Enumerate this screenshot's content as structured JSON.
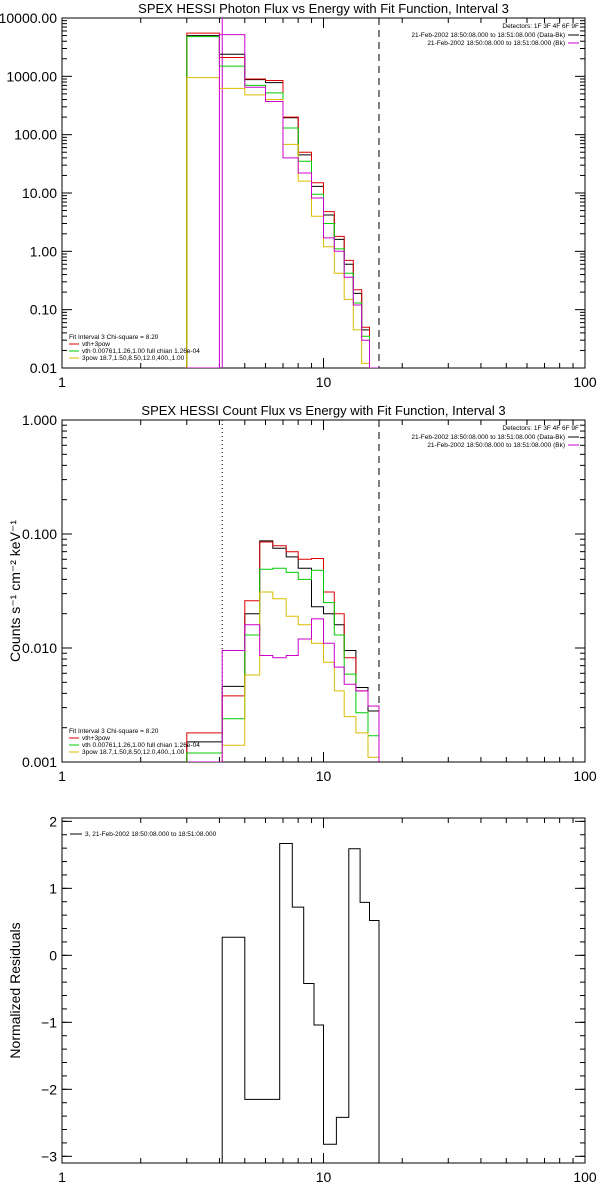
{
  "chart_data": [
    {
      "type": "line",
      "title": "SPEX HESSI Photon Flux vs Energy with Fit Function, Interval 3",
      "ylabel": "",
      "xlabel": "",
      "xscale": "log",
      "yscale": "log",
      "xlim": [
        1,
        100
      ],
      "ylim": [
        0.01,
        10000
      ],
      "xticks": [
        {
          "v": 1,
          "label": "1"
        },
        {
          "v": 10,
          "label": "10"
        },
        {
          "v": 100,
          "label": "100"
        }
      ],
      "yticks": [
        {
          "v": 0.01,
          "label": "0.01"
        },
        {
          "v": 0.1,
          "label": "0.10"
        },
        {
          "v": 1,
          "label": "1.00"
        },
        {
          "v": 10,
          "label": "10.00"
        },
        {
          "v": 100,
          "label": "100.00"
        },
        {
          "v": 1000,
          "label": "1000.00"
        },
        {
          "v": 10000,
          "label": "10000.00"
        }
      ],
      "top_legend": {
        "header": "Detectors: 1F 3F 4F 6F 9F",
        "entries": [
          {
            "label": "21-Feb-2002 18:50:08.000 to 18:51:08.000 (Data-Bk)",
            "color": "#000000"
          },
          {
            "label": "21-Feb-2002 18:50:08.000 to 18:51:08.000 (Bk)",
            "color": "#cc00cc"
          }
        ]
      },
      "bottom_legend": {
        "header": "Fit Interval 3   Chi-square = 8.20",
        "entries": [
          {
            "label": "vth+3pow",
            "color": "#dd0000"
          },
          {
            "label": "vth 0.00761,1.26,1.00  full chian 1.26e-04",
            "color": "#00cc00"
          },
          {
            "label": "3pow 18.7,1.50,8.50,12.0,400.,1.00",
            "color": "#ddbb00"
          }
        ]
      },
      "vlines": [
        {
          "x": 4.1,
          "style": "solid",
          "color": "#cc00cc"
        },
        {
          "x": 16.3,
          "style": "dashed",
          "color": "#000000"
        }
      ],
      "edges": [
        3.0,
        4.0,
        5.0,
        6.0,
        7.0,
        8.0,
        9.0,
        10.0,
        11.0,
        12.0,
        13.0,
        14.0,
        15.0,
        16.3
      ],
      "series": [
        {
          "name": "Data-Bk",
          "color": "#000000",
          "values": [
            5000,
            2400,
            880,
            780,
            195,
            45,
            13,
            4.2,
            1.6,
            0.6,
            0.19,
            0.045,
            0.003
          ]
        },
        {
          "name": "vth+3pow",
          "color": "#dd0000",
          "values": [
            5500,
            2100,
            900,
            850,
            200,
            50,
            15,
            4.8,
            1.8,
            0.7,
            0.22,
            0.05,
            0.004
          ]
        },
        {
          "name": "vth",
          "color": "#00cc00",
          "values": [
            4800,
            1500,
            700,
            520,
            130,
            35,
            9.5,
            3.0,
            1.1,
            0.42,
            0.13,
            0.035,
            0.002
          ]
        },
        {
          "name": "3pow",
          "color": "#ddbb00",
          "values": [
            950,
            620,
            480,
            400,
            68,
            16,
            4.0,
            1.2,
            0.42,
            0.15,
            0.045,
            0.012,
            0.001
          ]
        },
        {
          "name": "Bk",
          "color": "#cc00cc",
          "values": [
            0.001,
            5200,
            650,
            370,
            40,
            22,
            8.2,
            1.7,
            1.0,
            0.36,
            0.12,
            0.03,
            0.002
          ]
        }
      ]
    },
    {
      "type": "line",
      "title": "SPEX HESSI Count Flux vs Energy with Fit Function, Interval 3",
      "ylabel": "Counts s⁻¹ cm⁻² keV⁻¹",
      "xlabel": "",
      "xscale": "log",
      "yscale": "log",
      "xlim": [
        1,
        100
      ],
      "ylim": [
        0.001,
        1
      ],
      "xticks": [
        {
          "v": 1,
          "label": "1"
        },
        {
          "v": 10,
          "label": "10"
        },
        {
          "v": 100,
          "label": "100"
        }
      ],
      "yticks": [
        {
          "v": 0.001,
          "label": "0.001"
        },
        {
          "v": 0.01,
          "label": "0.010"
        },
        {
          "v": 0.1,
          "label": "0.100"
        },
        {
          "v": 1,
          "label": "1.000"
        }
      ],
      "top_legend": {
        "header": "Detectors: 1F 3F 4F 6F 9F",
        "entries": [
          {
            "label": "21-Feb-2002 18:50:08.000 to 18:51:08.000 (Data-Bk)",
            "color": "#000000"
          },
          {
            "label": "21-Feb-2002 18:50:08.000 to 18:51:08.000 (Bk)",
            "color": "#cc00cc"
          }
        ]
      },
      "bottom_legend": {
        "header": "Fit Interval 3   Chi-square = 8.20",
        "entries": [
          {
            "label": "vth+3pow",
            "color": "#dd0000"
          },
          {
            "label": "vth 0.00761,1.26,1.00  full chian 1.26e-04",
            "color": "#00cc00"
          },
          {
            "label": "3pow 18.7,1.50,8.50,12.0,400.,1.00",
            "color": "#ddbb00"
          }
        ]
      },
      "vlines": [
        {
          "x": 4.1,
          "style": "dotted",
          "color": "#000000"
        },
        {
          "x": 16.3,
          "style": "dashed",
          "color": "#000000"
        }
      ],
      "edges": [
        3.0,
        4.1,
        5.0,
        5.7,
        6.4,
        7.2,
        8.0,
        9.0,
        10.0,
        11.0,
        12.0,
        13.3,
        14.8,
        16.3
      ],
      "series": [
        {
          "name": "Data-Bk",
          "color": "#000000",
          "values": [
            0.0015,
            0.0046,
            0.02,
            0.087,
            0.075,
            0.063,
            0.05,
            0.023,
            0.02,
            0.016,
            0.0095,
            0.0045,
            0.0028
          ]
        },
        {
          "name": "vth+3pow",
          "color": "#dd0000",
          "values": [
            0.0018,
            0.0038,
            0.026,
            0.085,
            0.079,
            0.07,
            0.06,
            0.061,
            0.031,
            0.02,
            0.0082,
            0.0042,
            0.0031
          ]
        },
        {
          "name": "vth",
          "color": "#00cc00",
          "values": [
            0.0012,
            0.0024,
            0.013,
            0.049,
            0.05,
            0.046,
            0.04,
            0.048,
            0.025,
            0.013,
            0.0059,
            0.0027,
            0.0017
          ]
        },
        {
          "name": "3pow",
          "color": "#ddbb00",
          "values": [
            0.001,
            0.0014,
            0.0058,
            0.031,
            0.027,
            0.019,
            0.016,
            0.011,
            0.0075,
            0.0042,
            0.0025,
            0.0018,
            0.0011
          ]
        },
        {
          "name": "Bk",
          "color": "#cc00cc",
          "values": [
            0.001,
            0.0095,
            0.016,
            0.0086,
            0.0082,
            0.0086,
            0.012,
            0.018,
            0.011,
            0.0068,
            0.0048,
            0.0042,
            0.0031
          ]
        }
      ]
    },
    {
      "type": "line",
      "title": "",
      "ylabel": "Normalized Residuals",
      "xlabel": "",
      "xscale": "log",
      "yscale": "linear",
      "xlim": [
        1,
        100
      ],
      "ylim": [
        -3.1,
        2.05
      ],
      "xticks": [
        {
          "v": 1,
          "label": "1"
        },
        {
          "v": 10,
          "label": "10"
        },
        {
          "v": 100,
          "label": "100"
        }
      ],
      "yticks": [
        {
          "v": -3,
          "label": "−3"
        },
        {
          "v": -2,
          "label": "−2"
        },
        {
          "v": -1,
          "label": "−1"
        },
        {
          "v": 0,
          "label": "0"
        },
        {
          "v": 1,
          "label": "1"
        },
        {
          "v": 2,
          "label": "2"
        }
      ],
      "top_legend": {
        "header": "",
        "entries": [
          {
            "label": "3, 21-Feb-2002 18:50:08.000 to 18:51:08.000",
            "color": "#000000"
          }
        ]
      },
      "bottom_legend": {
        "header": "",
        "entries": []
      },
      "vlines": [],
      "edges": [
        4.1,
        5.0,
        5.9,
        6.8,
        7.6,
        8.4,
        9.2,
        10.0,
        11.2,
        12.5,
        13.8,
        15.0,
        16.3
      ],
      "series": [
        {
          "name": "",
          "color": "#000000",
          "values": [
            0.27,
            -2.15,
            -2.15,
            1.67,
            0.72,
            -0.42,
            -1.04,
            -2.82,
            -2.42,
            1.59,
            0.79,
            0.52
          ]
        }
      ]
    }
  ]
}
